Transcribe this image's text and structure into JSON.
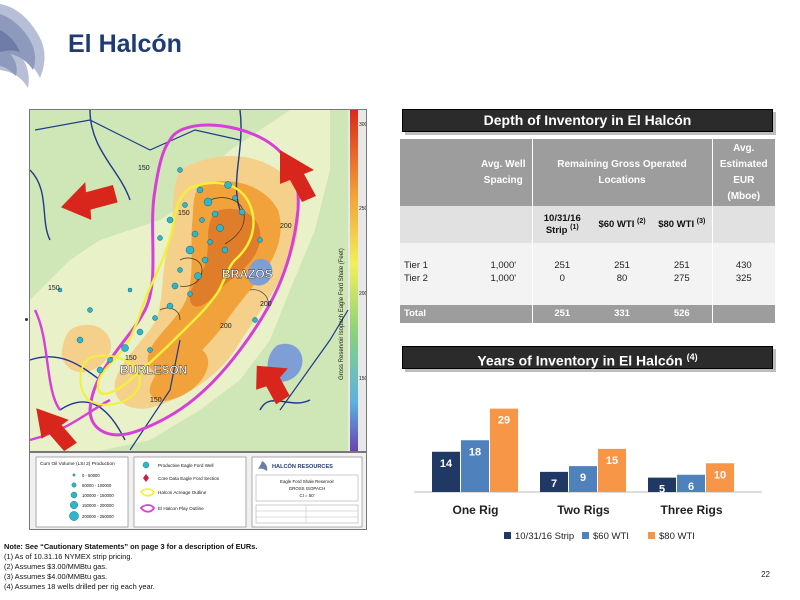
{
  "page": {
    "title": "El Halcón",
    "page_number": "22"
  },
  "map": {
    "labels": {
      "brazos": "BRAZOS",
      "burleson": "BURLESON",
      "colorbar_title": "Gross Reservoir Isopach Eagle Ford Shale (Feet)",
      "contour_labels": [
        "150",
        "150",
        "150",
        "150",
        "150",
        "200",
        "200",
        "200"
      ],
      "colorbar_ticks": [
        "300",
        "250",
        "200",
        "150"
      ]
    },
    "legend": {
      "cum_title": "Cum Oil Volume (LSI 2) Production",
      "cum_ranges": [
        "0 - 50000",
        "50000 - 100000",
        "100000 - 150000",
        "150000 - 200000",
        "200000 - 250000"
      ],
      "items": [
        "Productive Eagle Ford Well",
        "Core Data Eagle Ford Section",
        "Halcon Acreage Outline",
        "El Halcon Play Outline"
      ],
      "company": "HALCÓN RESOURCES",
      "map_title_lines": [
        "Eagle Ford Shale Reservoir",
        "GROSS ISOPACH",
        "CI = 50'"
      ]
    },
    "colors": {
      "map_base": "#cfe6b6",
      "orange": "#f2a23a",
      "yellow_outline": "#f1f13a",
      "magenta_outline": "#d63fd8",
      "red_arrow": "#d9261c"
    }
  },
  "table": {
    "header": "Depth of Inventory in El Halcón",
    "col_spacing": "Avg. Well Spacing",
    "col_remaining": "Remaining Gross Operated Locations",
    "col_eur": "Avg. Estimated EUR (Mboe)",
    "sub_strip": "10/31/16 Strip",
    "sub_strip_note": "(1)",
    "sub_60": "$60 WTI",
    "sub_60_note": "(2)",
    "sub_80": "$80 WTI",
    "sub_80_note": "(3)",
    "rows": [
      {
        "label": "Tier 1",
        "spacing": "1,000'",
        "strip": "251",
        "wti60": "251",
        "wti80": "251",
        "eur": "430"
      },
      {
        "label": "Tier 2",
        "spacing": "1,000'",
        "strip": "0",
        "wti60": "80",
        "wti80": "275",
        "eur": "325"
      }
    ],
    "total": {
      "label": "Total",
      "strip": "251",
      "wti60": "331",
      "wti80": "526"
    }
  },
  "chart_header": {
    "text": "Years of Inventory in El Halcón",
    "note": "(4)"
  },
  "chart_data": {
    "type": "bar",
    "categories": [
      "One Rig",
      "Two Rigs",
      "Three Rigs"
    ],
    "series": [
      {
        "name": "10/31/16 Strip",
        "color": "#1f3864",
        "values": [
          14,
          7,
          5
        ]
      },
      {
        "name": "$60 WTI",
        "color": "#4f81bd",
        "values": [
          18,
          9,
          6
        ]
      },
      {
        "name": "$80 WTI",
        "color": "#f79646",
        "values": [
          29,
          15,
          10
        ]
      }
    ],
    "ylim": [
      0,
      32
    ]
  },
  "footnote": {
    "note": "Note: See “Cautionary Statements” on page 3 for a description of EURs.",
    "lines": [
      "(1)  As of 10.31.16 NYMEX strip pricing.",
      "(2)  Assumes $3.00/MMBtu gas.",
      "(3)  Assumes $4.00/MMBtu gas.",
      "(4)  Assumes  18 wells drilled per rig each year."
    ]
  }
}
